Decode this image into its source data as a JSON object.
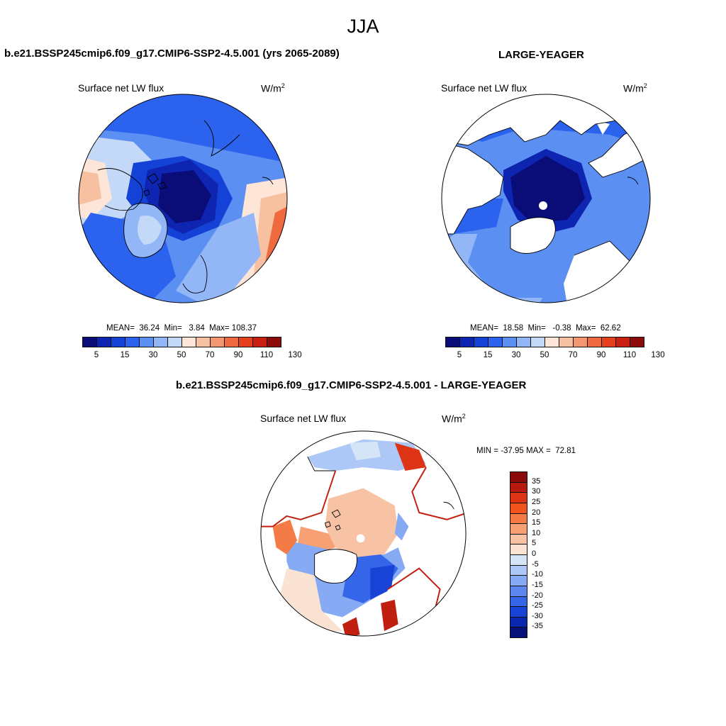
{
  "figure": {
    "title": "JJA"
  },
  "panels": {
    "model": {
      "header": "b.e21.BSSP245cmip6.f09_g17.CMIP6-SSP2-4.5.001 (yrs 2065-2089)",
      "variable": "Surface net LW flux",
      "units": "W/m",
      "units_sup": "2",
      "stats": {
        "mean_label": "MEAN=",
        "mean": "36.24",
        "min_label": "Min=",
        "min": "3.84",
        "max_label": "Max=",
        "max": "108.37"
      }
    },
    "obs": {
      "header": "LARGE-YEAGER",
      "variable": "Surface net LW flux",
      "units": "W/m",
      "units_sup": "2",
      "stats": {
        "mean_label": "MEAN=",
        "mean": "18.58",
        "min_label": "Min=",
        "min": "-0.38",
        "max_label": "Max=",
        "max": "62.62"
      }
    },
    "diff": {
      "header": "b.e21.BSSP245cmip6.f09_g17.CMIP6-SSP2-4.5.001 - LARGE-YEAGER",
      "variable": "Surface net LW flux",
      "units": "W/m",
      "units_sup": "2",
      "stats": {
        "min_label": "MIN =",
        "min": "-37.95",
        "max_label": "MAX =",
        "max": "72.81"
      }
    }
  },
  "colorbars": {
    "absolute": {
      "tick_labels": [
        "5",
        "15",
        "30",
        "50",
        "70",
        "90",
        "110",
        "130"
      ],
      "colors": [
        "#0a0d78",
        "#0e25b2",
        "#1442d6",
        "#2c63ee",
        "#5b8ff2",
        "#93b7f6",
        "#c4d8f7",
        "#fde6d8",
        "#f7c0a0",
        "#f49770",
        "#ef6a3e",
        "#e6411f",
        "#c92012",
        "#8d0b0b"
      ]
    },
    "difference": {
      "tick_labels": [
        "35",
        "30",
        "25",
        "20",
        "15",
        "10",
        "5",
        "0",
        "-5",
        "-10",
        "-15",
        "-20",
        "-25",
        "-30",
        "-35"
      ],
      "colors_top_to_bottom": [
        "#8a0b0b",
        "#b81a10",
        "#dc3414",
        "#f0541c",
        "#f47b45",
        "#f6a074",
        "#f8c3a5",
        "#fbe3d4",
        "#d6e4f8",
        "#adc8f6",
        "#86aaf3",
        "#5d87ee",
        "#3565e8",
        "#1942d6",
        "#0a27b0",
        "#07117a"
      ]
    }
  }
}
